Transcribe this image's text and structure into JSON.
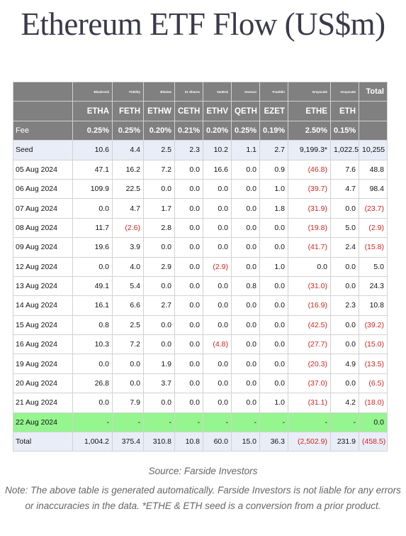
{
  "title": "Ethereum ETF Flow (US$m)",
  "table": {
    "issuers": [
      "Blackrock",
      "Fidelity",
      "Bitwise",
      "21 Shares",
      "VanEck",
      "Invesco",
      "Franklin",
      "Grayscale",
      "Grayscale",
      "Total"
    ],
    "tickers": [
      "ETHA",
      "FETH",
      "ETHW",
      "CETH",
      "ETHV",
      "QETH",
      "EZET",
      "ETHE",
      "ETH"
    ],
    "fee_label": "Fee",
    "fees": [
      "0.25%",
      "0.25%",
      "0.20%",
      "0.21%",
      "0.20%",
      "0.25%",
      "0.19%",
      "2.50%",
      "0.15%"
    ],
    "rows": [
      {
        "label": "Seed",
        "values": [
          "10.6",
          "4.4",
          "2.5",
          "2.3",
          "10.2",
          "1.1",
          "2.7",
          "9,199.3*",
          "1,022.5*",
          "10,255"
        ],
        "style": "seed"
      },
      {
        "label": "05 Aug 2024",
        "values": [
          "47.1",
          "16.2",
          "7.2",
          "0.0",
          "16.6",
          "0.0",
          "0.9",
          "(46.8)",
          "7.6",
          "48.8"
        ]
      },
      {
        "label": "06 Aug 2024",
        "values": [
          "109.9",
          "22.5",
          "0.0",
          "0.0",
          "0.0",
          "0.0",
          "1.0",
          "(39.7)",
          "4.7",
          "98.4"
        ]
      },
      {
        "label": "07 Aug 2024",
        "values": [
          "0.0",
          "4.7",
          "1.7",
          "0.0",
          "0.0",
          "0.0",
          "1.8",
          "(31.9)",
          "0.0",
          "(23.7)"
        ]
      },
      {
        "label": "08 Aug 2024",
        "values": [
          "11.7",
          "(2.6)",
          "2.8",
          "0.0",
          "0.0",
          "0.0",
          "0.0",
          "(19.8)",
          "5.0",
          "(2.9)"
        ]
      },
      {
        "label": "09 Aug 2024",
        "values": [
          "19.6",
          "3.9",
          "0.0",
          "0.0",
          "0.0",
          "0.0",
          "0.0",
          "(41.7)",
          "2.4",
          "(15.8)"
        ]
      },
      {
        "label": "12 Aug 2024",
        "values": [
          "0.0",
          "4.0",
          "2.9",
          "0.0",
          "(2.9)",
          "0.0",
          "1.0",
          "0.0",
          "0.0",
          "5.0"
        ]
      },
      {
        "label": "13 Aug 2024",
        "values": [
          "49.1",
          "5.4",
          "0.0",
          "0.0",
          "0.0",
          "0.8",
          "0.0",
          "(31.0)",
          "0.0",
          "24.3"
        ]
      },
      {
        "label": "14 Aug 2024",
        "values": [
          "16.1",
          "6.6",
          "2.7",
          "0.0",
          "0.0",
          "0.0",
          "0.0",
          "(16.9)",
          "2.3",
          "10.8"
        ]
      },
      {
        "label": "15 Aug 2024",
        "values": [
          "0.8",
          "2.5",
          "0.0",
          "0.0",
          "0.0",
          "0.0",
          "0.0",
          "(42.5)",
          "0.0",
          "(39.2)"
        ]
      },
      {
        "label": "16 Aug 2024",
        "values": [
          "10.3",
          "7.2",
          "0.0",
          "0.0",
          "(4.8)",
          "0.0",
          "0.0",
          "(27.7)",
          "0.0",
          "(15.0)"
        ]
      },
      {
        "label": "19 Aug 2024",
        "values": [
          "0.0",
          "0.0",
          "1.9",
          "0.0",
          "0.0",
          "0.0",
          "0.0",
          "(20.3)",
          "4.9",
          "(13.5)"
        ]
      },
      {
        "label": "20 Aug 2024",
        "values": [
          "26.8",
          "0.0",
          "3.7",
          "0.0",
          "0.0",
          "0.0",
          "0.0",
          "(37.0)",
          "0.0",
          "(6.5)"
        ]
      },
      {
        "label": "21 Aug 2024",
        "values": [
          "0.0",
          "7.9",
          "0.0",
          "0.0",
          "0.0",
          "0.0",
          "1.0",
          "(31.1)",
          "4.2",
          "(18.0)"
        ]
      },
      {
        "label": "22 Aug 2024",
        "values": [
          "-",
          "-",
          "-",
          "-",
          "-",
          "-",
          "-",
          "-",
          "-",
          "0.0"
        ],
        "style": "today"
      },
      {
        "label": "Total",
        "values": [
          "1,004.2",
          "375.4",
          "310.8",
          "10.8",
          "60.0",
          "15.0",
          "36.3",
          "(2,502.9)",
          "231.9",
          "(458.5)"
        ],
        "style": "total"
      }
    ]
  },
  "source": "Source: Farside Investors",
  "note": "Note: The above table is generated automatically. Farside Investors is not liable for any errors or inaccuracies in the data. *ETHE & ETH seed is a conversion from a prior product.",
  "colors": {
    "header_bg": "#808080",
    "negative": "#d0251f",
    "highlight_row": "#95f58f",
    "seed_total_bg": "#e9edf7"
  }
}
